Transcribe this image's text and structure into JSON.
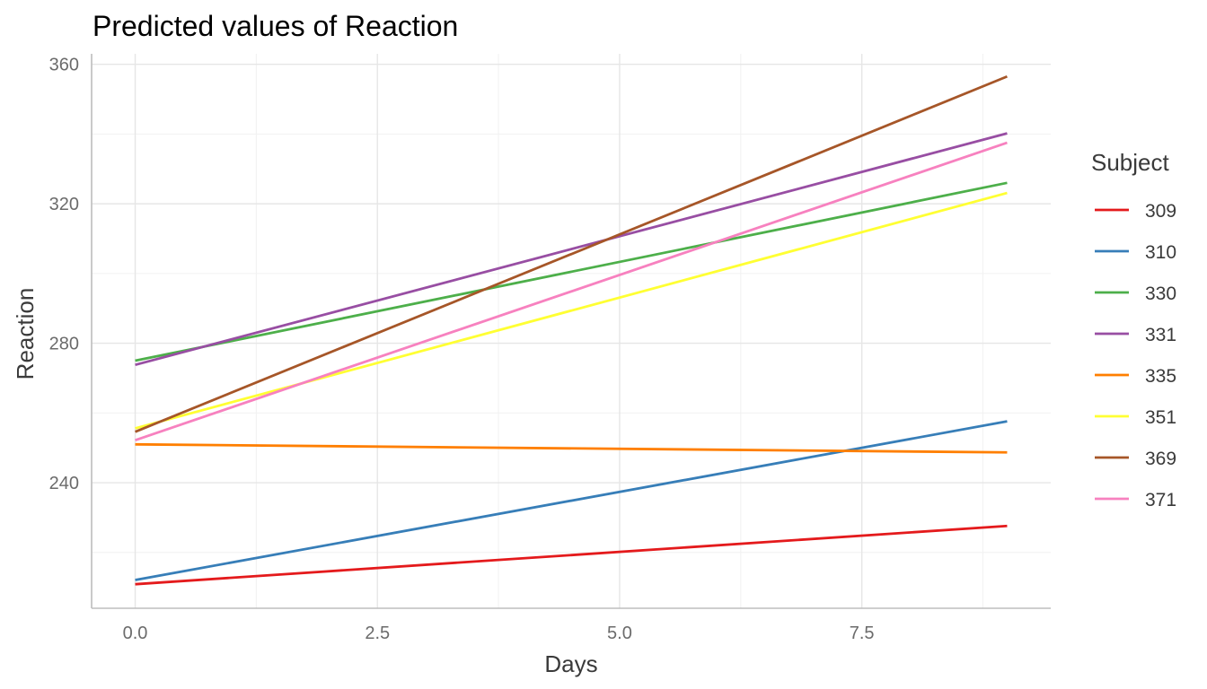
{
  "chart_data": {
    "type": "line",
    "title": "Predicted values of Reaction",
    "xlabel": "Days",
    "ylabel": "Reaction",
    "xlim": [
      -0.45,
      9.45
    ],
    "ylim": [
      204,
      363
    ],
    "xticks": [
      0.0,
      2.5,
      5.0,
      7.5
    ],
    "xtick_labels": [
      "0.0",
      "2.5",
      "5.0",
      "7.5"
    ],
    "yticks": [
      240,
      280,
      320,
      360
    ],
    "ytick_labels": [
      "240",
      "280",
      "320",
      "360"
    ],
    "grid": true,
    "legend_title": "Subject",
    "legend_position": "right",
    "x": [
      0,
      9
    ],
    "series": [
      {
        "name": "309",
        "color": "#e41a1c",
        "values": [
          210.9,
          227.6
        ]
      },
      {
        "name": "310",
        "color": "#377eb8",
        "values": [
          212.1,
          257.6
        ]
      },
      {
        "name": "330",
        "color": "#4daf4a",
        "values": [
          275.0,
          326.0
        ]
      },
      {
        "name": "331",
        "color": "#984ea3",
        "values": [
          273.8,
          340.2
        ]
      },
      {
        "name": "335",
        "color": "#ff7f00",
        "values": [
          251.0,
          248.7
        ]
      },
      {
        "name": "351",
        "color": "#ffff33",
        "values": [
          255.6,
          323.1
        ]
      },
      {
        "name": "369",
        "color": "#a65628",
        "values": [
          254.6,
          356.5
        ]
      },
      {
        "name": "371",
        "color": "#f781bf",
        "values": [
          252.2,
          337.5
        ]
      }
    ]
  }
}
